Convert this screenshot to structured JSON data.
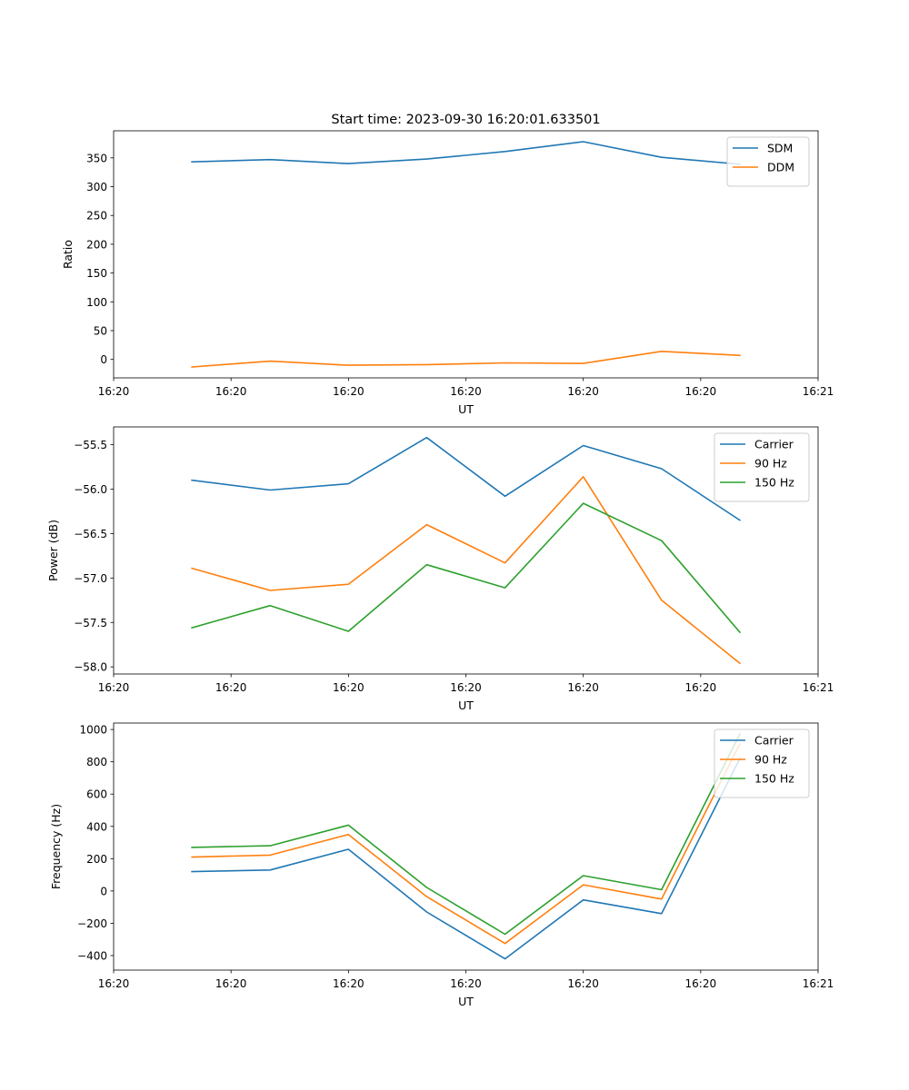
{
  "figure_title": "Start time: 2023-09-30 16:20:01.633501",
  "colors": {
    "blue": "#1f77b4",
    "orange": "#ff7f0e",
    "green": "#2ca02c"
  },
  "chart_data": [
    {
      "type": "line",
      "title": "Start time: 2023-09-30 16:20:01.633501",
      "xlabel": "UT",
      "ylabel": "Ratio",
      "x": [
        1,
        2,
        3,
        4,
        5,
        6,
        7,
        8
      ],
      "xlim": [
        0.0,
        9.0
      ],
      "x_ticks": [
        0,
        1.5,
        3,
        4.5,
        6,
        7.5,
        9
      ],
      "x_tick_labels": [
        "16:20",
        "16:20",
        "16:20",
        "16:20",
        "16:20",
        "16:20",
        "16:21"
      ],
      "ylim": [
        -32,
        397
      ],
      "y_ticks": [
        0,
        50,
        100,
        150,
        200,
        250,
        300,
        350
      ],
      "y_tick_labels": [
        "0",
        "50",
        "100",
        "150",
        "200",
        "250",
        "300",
        "350"
      ],
      "legend_position": "top-right",
      "series": [
        {
          "name": "SDM",
          "color": "#1f77b4",
          "values": [
            343,
            347,
            340,
            348,
            361,
            378,
            351,
            339
          ]
        },
        {
          "name": "DDM",
          "color": "#ff7f0e",
          "values": [
            -13,
            -3,
            -10,
            -9,
            -6,
            -7,
            14,
            7
          ]
        }
      ]
    },
    {
      "type": "line",
      "title": "",
      "xlabel": "UT",
      "ylabel": "Power (dB)",
      "x": [
        1,
        2,
        3,
        4,
        5,
        6,
        7,
        8
      ],
      "xlim": [
        0.0,
        9.0
      ],
      "x_ticks": [
        0,
        1.5,
        3,
        4.5,
        6,
        7.5,
        9
      ],
      "x_tick_labels": [
        "16:20",
        "16:20",
        "16:20",
        "16:20",
        "16:20",
        "16:20",
        "16:21"
      ],
      "ylim": [
        -58.08,
        -55.3
      ],
      "y_ticks": [
        -58.0,
        -57.5,
        -57.0,
        -56.5,
        -56.0,
        -55.5
      ],
      "y_tick_labels": [
        "−58.0",
        "−57.5",
        "−57.0",
        "−56.5",
        "−56.0",
        "−55.5"
      ],
      "legend_position": "top-right",
      "series": [
        {
          "name": "Carrier",
          "color": "#1f77b4",
          "values": [
            -55.9,
            -56.01,
            -55.94,
            -55.42,
            -56.08,
            -55.51,
            -55.77,
            -56.35
          ]
        },
        {
          "name": "90 Hz",
          "color": "#ff7f0e",
          "values": [
            -56.89,
            -57.14,
            -57.07,
            -56.4,
            -56.83,
            -55.86,
            -57.25,
            -57.96
          ]
        },
        {
          "name": "150 Hz",
          "color": "#2ca02c",
          "values": [
            -57.56,
            -57.31,
            -57.6,
            -56.85,
            -57.11,
            -56.16,
            -56.58,
            -57.61
          ]
        }
      ]
    },
    {
      "type": "line",
      "title": "",
      "xlabel": "UT",
      "ylabel": "Frequency (Hz)",
      "x": [
        1,
        2,
        3,
        4,
        5,
        6,
        7,
        8
      ],
      "xlim": [
        0.0,
        9.0
      ],
      "x_ticks": [
        0,
        1.5,
        3,
        4.5,
        6,
        7.5,
        9
      ],
      "x_tick_labels": [
        "16:20",
        "16:20",
        "16:20",
        "16:20",
        "16:20",
        "16:20",
        "16:21"
      ],
      "ylim": [
        -490,
        1040
      ],
      "y_ticks": [
        -400,
        -200,
        0,
        200,
        400,
        600,
        800,
        1000
      ],
      "y_tick_labels": [
        "−400",
        "−200",
        "0",
        "200",
        "400",
        "600",
        "800",
        "1000"
      ],
      "legend_position": "top-right",
      "series": [
        {
          "name": "Carrier",
          "color": "#1f77b4",
          "values": [
            120,
            130,
            258,
            -130,
            -420,
            -55,
            -140,
            820
          ]
        },
        {
          "name": "90 Hz",
          "color": "#ff7f0e",
          "values": [
            210,
            222,
            350,
            -35,
            -325,
            38,
            -50,
            910
          ]
        },
        {
          "name": "150 Hz",
          "color": "#2ca02c",
          "values": [
            270,
            280,
            408,
            22,
            -268,
            95,
            8,
            972
          ]
        }
      ]
    }
  ]
}
